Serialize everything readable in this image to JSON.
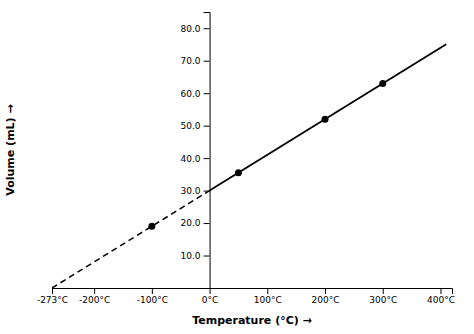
{
  "chart_data": {
    "type": "line",
    "xlabel": "Temperature (°C) →",
    "ylabel": "Volume (mL) →",
    "xlim": [
      -273,
      420
    ],
    "ylim": [
      0,
      85
    ],
    "xticks": [
      {
        "value": -273,
        "label": "-273°C"
      },
      {
        "value": -200,
        "label": "-200°C"
      },
      {
        "value": -100,
        "label": "-100°C"
      },
      {
        "value": 0,
        "label": "0°C"
      },
      {
        "value": 100,
        "label": "100°C"
      },
      {
        "value": 200,
        "label": "200°C"
      },
      {
        "value": 300,
        "label": "300°C"
      },
      {
        "value": 400,
        "label": "400°C"
      }
    ],
    "yticks": [
      {
        "value": 10,
        "label": "10.0"
      },
      {
        "value": 20,
        "label": "20.0"
      },
      {
        "value": 30,
        "label": "30.0"
      },
      {
        "value": 40,
        "label": "40.0"
      },
      {
        "value": 50,
        "label": "50.0"
      },
      {
        "value": 60,
        "label": "60.0"
      },
      {
        "value": 70,
        "label": "70.0"
      },
      {
        "value": 80,
        "label": "80.0"
      }
    ],
    "grid": false,
    "series": [
      {
        "type": "line",
        "line_style": "dashed",
        "color": "#000000",
        "x": [
          -273,
          0
        ],
        "values": [
          0,
          30
        ]
      },
      {
        "type": "line",
        "line_style": "solid",
        "color": "#000000",
        "x": [
          0,
          410
        ],
        "values": [
          30,
          75.05494505494505
        ]
      },
      {
        "type": "scatter",
        "marker": "circle",
        "color": "#000000",
        "x": [
          -100,
          50,
          200,
          300
        ],
        "values": [
          19.01098901098901,
          35.494505494505496,
          51.97802197802198,
          62.967032967032964
        ]
      }
    ]
  }
}
